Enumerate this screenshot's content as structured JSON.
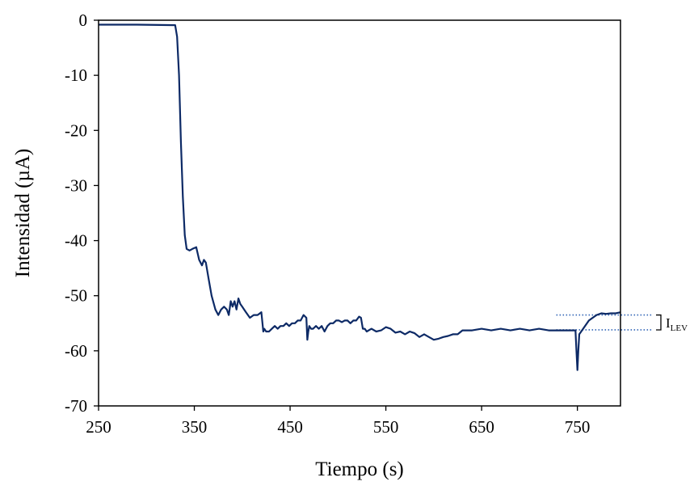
{
  "chart_data": {
    "type": "line",
    "title": "",
    "xlabel": "Tiempo (s)",
    "ylabel": "Intensidad (µA)",
    "xlim": [
      250,
      795
    ],
    "ylim": [
      -70,
      0
    ],
    "x_ticks": [
      250,
      350,
      450,
      550,
      650,
      750
    ],
    "y_ticks": [
      0,
      -10,
      -20,
      -30,
      -40,
      -50,
      -60,
      -70
    ],
    "grid": false,
    "legend": "none",
    "line_color": "#0d2a66",
    "series": [
      {
        "x": [
          250,
          290,
          330,
          332,
          334,
          336,
          338,
          340,
          342,
          345,
          348,
          352,
          355,
          358,
          360,
          362,
          365,
          368,
          372,
          375,
          378,
          381,
          384,
          386,
          388,
          390,
          392,
          394,
          396,
          398,
          400,
          404,
          408,
          412,
          416,
          420,
          422,
          423,
          425,
          428,
          431,
          434,
          437,
          440,
          443,
          446,
          449,
          452,
          455,
          458,
          461,
          464,
          467,
          468,
          469,
          470,
          472,
          474,
          477,
          480,
          483,
          486,
          489,
          492,
          495,
          498,
          501,
          504,
          507,
          510,
          513,
          516,
          519,
          522,
          524,
          526,
          528,
          530,
          535,
          540,
          545,
          550,
          555,
          560,
          565,
          570,
          575,
          580,
          585,
          590,
          595,
          600,
          605,
          610,
          615,
          620,
          625,
          630,
          640,
          650,
          660,
          670,
          680,
          690,
          700,
          710,
          720,
          730,
          740,
          748,
          749,
          750,
          751,
          752,
          754,
          758,
          762,
          766,
          770,
          775,
          780,
          785,
          790,
          795
        ],
        "y": [
          -0.8,
          -0.8,
          -0.9,
          -3,
          -10,
          -22,
          -32,
          -39,
          -41.5,
          -41.8,
          -41.5,
          -41.2,
          -43.5,
          -44.5,
          -43.5,
          -44,
          -47,
          -50,
          -52.5,
          -53.5,
          -52.5,
          -52,
          -52.5,
          -53.5,
          -51,
          -52,
          -51,
          -52.5,
          -50.5,
          -51.5,
          -52,
          -53,
          -54,
          -53.5,
          -53.5,
          -53,
          -56.5,
          -56,
          -56.5,
          -56.5,
          -56,
          -55.5,
          -56,
          -55.5,
          -55.5,
          -55,
          -55.5,
          -55,
          -55,
          -54.5,
          -54.5,
          -53.5,
          -54,
          -58,
          -56.5,
          -55.5,
          -56,
          -56,
          -55.5,
          -56,
          -55.5,
          -56.5,
          -55.5,
          -55,
          -55,
          -54.5,
          -54.5,
          -54.8,
          -54.5,
          -54.5,
          -55,
          -54.5,
          -54.5,
          -53.8,
          -54,
          -56,
          -56,
          -56.5,
          -56,
          -56.5,
          -56.3,
          -55.7,
          -56,
          -56.7,
          -56.5,
          -57,
          -56.5,
          -56.8,
          -57.5,
          -57,
          -57.5,
          -58,
          -57.8,
          -57.5,
          -57.3,
          -57,
          -57,
          -56.3,
          -56.3,
          -56,
          -56.3,
          -56,
          -56.3,
          -56,
          -56.3,
          -56,
          -56.3,
          -56.3,
          -56.3,
          -56.3,
          -60,
          -63.5,
          -60,
          -57,
          -56.5,
          -55.5,
          -54.5,
          -54,
          -53.5,
          -53.2,
          -53.3,
          -53.2,
          -53.2,
          -53
        ]
      }
    ],
    "annotations": [
      {
        "type": "reference_line",
        "y": -53.5,
        "x_from": 728,
        "x_to": 795,
        "style": "dotted"
      },
      {
        "type": "reference_line",
        "y": -56.2,
        "x_from": 728,
        "x_to": 795,
        "style": "dotted"
      },
      {
        "type": "bracket_label",
        "text": "I",
        "subscript": "LEV",
        "y_from": -53.5,
        "y_to": -56.2
      }
    ]
  }
}
